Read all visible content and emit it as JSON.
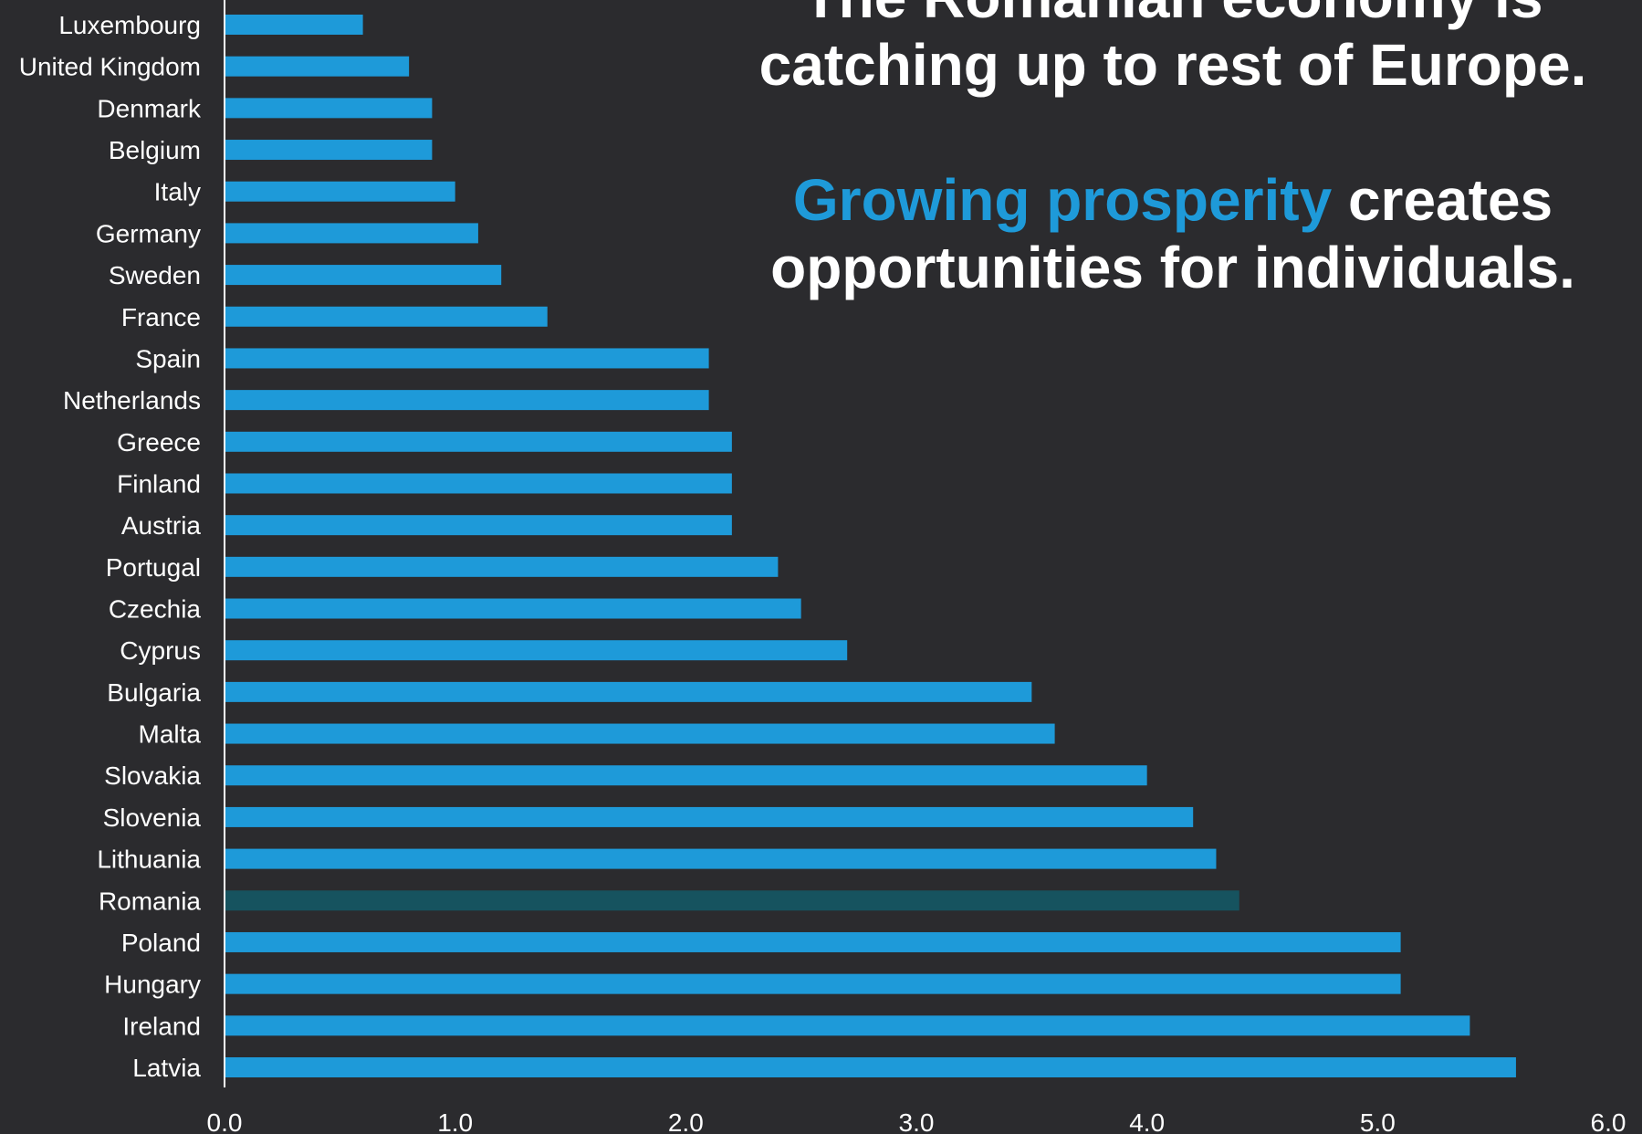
{
  "headline": {
    "line1": "The Romanian economy is",
    "line2": "catching up to rest of Europe.",
    "line3_accent": "Growing prosperity",
    "line3_rest": " creates",
    "line4": "opportunities for individuals."
  },
  "colors": {
    "background": "#2b2b2e",
    "bar": "#1e9ad9",
    "highlight_bar": "#16535f",
    "text": "#ffffff"
  },
  "chart_data": {
    "type": "bar",
    "orientation": "horizontal",
    "categories": [
      "Luxembourg",
      "United Kingdom",
      "Denmark",
      "Belgium",
      "Italy",
      "Germany",
      "Sweden",
      "France",
      "Spain",
      "Netherlands",
      "Greece",
      "Finland",
      "Austria",
      "Portugal",
      "Czechia",
      "Cyprus",
      "Bulgaria",
      "Malta",
      "Slovakia",
      "Slovenia",
      "Lithuania",
      "Romania",
      "Poland",
      "Hungary",
      "Ireland",
      "Latvia"
    ],
    "values": [
      0.6,
      0.8,
      0.9,
      0.9,
      1.0,
      1.1,
      1.2,
      1.4,
      2.1,
      2.1,
      2.2,
      2.2,
      2.2,
      2.4,
      2.5,
      2.7,
      3.5,
      3.6,
      4.0,
      4.2,
      4.3,
      4.4,
      5.1,
      5.1,
      5.4,
      5.6
    ],
    "highlight": "Romania",
    "xlim": [
      0,
      6
    ],
    "xticks": [
      "0.0",
      "1.0",
      "2.0",
      "3.0",
      "4.0",
      "5.0",
      "6.0"
    ],
    "grid": false,
    "legend": "none"
  }
}
